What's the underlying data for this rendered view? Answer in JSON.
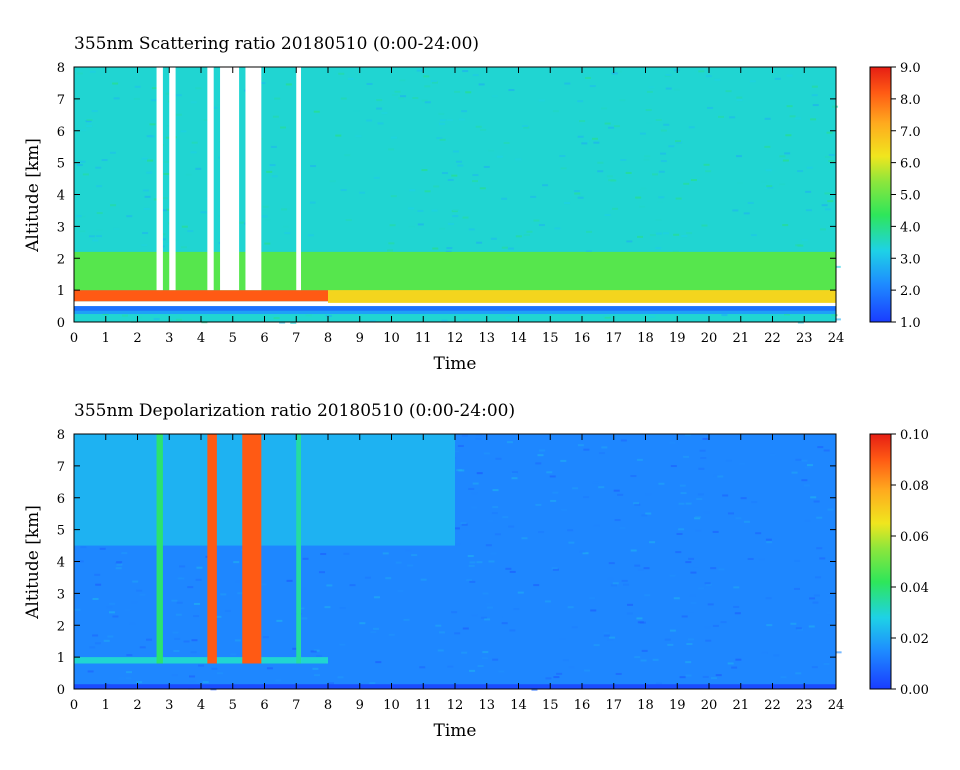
{
  "chart_data": [
    {
      "type": "heatmap",
      "title": "355nm Scattering ratio  20180510 (0:00-24:00)",
      "xlabel": "Time",
      "ylabel": "Altitude [km]",
      "xlim": [
        0,
        24
      ],
      "ylim": [
        0,
        8
      ],
      "x_ticks": [
        "0",
        "1",
        "2",
        "3",
        "4",
        "5",
        "6",
        "7",
        "8",
        "9",
        "10",
        "11",
        "12",
        "13",
        "14",
        "15",
        "16",
        "17",
        "18",
        "19",
        "20",
        "21",
        "22",
        "23",
        "24"
      ],
      "y_ticks": [
        "0",
        "1",
        "2",
        "3",
        "4",
        "5",
        "6",
        "7",
        "8"
      ],
      "colorbar": {
        "min": 1.0,
        "max": 9.0,
        "ticks": [
          "1.0",
          "2.0",
          "3.0",
          "4.0",
          "5.0",
          "6.0",
          "7.0",
          "8.0",
          "9.0"
        ]
      },
      "background_value": 3.4,
      "features": [
        {
          "kind": "layer",
          "x": [
            0,
            24
          ],
          "y": [
            0.25,
            0.35
          ],
          "value": 2.5
        },
        {
          "kind": "layer",
          "x": [
            0,
            24
          ],
          "y": [
            0.35,
            0.5
          ],
          "value": 1.8
        },
        {
          "kind": "layer",
          "x": [
            0,
            24
          ],
          "y": [
            0.5,
            0.65
          ],
          "value": "saturated"
        },
        {
          "kind": "layer",
          "x": [
            0,
            8
          ],
          "y": [
            0.65,
            1.0
          ],
          "value": 8.2
        },
        {
          "kind": "layer",
          "x": [
            8,
            24
          ],
          "y": [
            0.6,
            1.9
          ],
          "value": 6.5
        },
        {
          "kind": "layer",
          "x": [
            0,
            24
          ],
          "y": [
            1.0,
            2.2
          ],
          "value": 4.8
        },
        {
          "kind": "gap",
          "x": [
            2.6,
            2.8
          ],
          "y": [
            1.0,
            8
          ]
        },
        {
          "kind": "gap",
          "x": [
            3.0,
            3.2
          ],
          "y": [
            1.0,
            8
          ]
        },
        {
          "kind": "gap",
          "x": [
            4.2,
            4.4
          ],
          "y": [
            1.0,
            8
          ]
        },
        {
          "kind": "gap",
          "x": [
            4.6,
            5.2
          ],
          "y": [
            1.0,
            8
          ]
        },
        {
          "kind": "gap",
          "x": [
            5.4,
            5.9
          ],
          "y": [
            1.0,
            8
          ]
        },
        {
          "kind": "gap",
          "x": [
            7.0,
            7.15
          ],
          "y": [
            1.0,
            8
          ]
        }
      ]
    },
    {
      "type": "heatmap",
      "title": "355nm Depolarization ratio  20180510 (0:00-24:00)",
      "xlabel": "Time",
      "ylabel": "Altitude [km]",
      "xlim": [
        0,
        24
      ],
      "ylim": [
        0,
        8
      ],
      "x_ticks": [
        "0",
        "1",
        "2",
        "3",
        "4",
        "5",
        "6",
        "7",
        "8",
        "9",
        "10",
        "11",
        "12",
        "13",
        "14",
        "15",
        "16",
        "17",
        "18",
        "19",
        "20",
        "21",
        "22",
        "23",
        "24"
      ],
      "y_ticks": [
        "0",
        "1",
        "2",
        "3",
        "4",
        "5",
        "6",
        "7",
        "8"
      ],
      "colorbar": {
        "min": 0.0,
        "max": 0.1,
        "ticks": [
          "0.00",
          "0.02",
          "0.04",
          "0.06",
          "0.08",
          "0.10"
        ]
      },
      "background_value": 0.014,
      "features": [
        {
          "kind": "layer",
          "x": [
            0,
            24
          ],
          "y": [
            0.0,
            0.15
          ],
          "value": 0.003
        },
        {
          "kind": "layer",
          "x": [
            0,
            8
          ],
          "y": [
            0.8,
            1.0
          ],
          "value": 0.03
        },
        {
          "kind": "layer",
          "x": [
            0,
            12
          ],
          "y": [
            4.5,
            8
          ],
          "value": 0.022
        },
        {
          "kind": "column",
          "x": [
            2.6,
            2.8
          ],
          "y": [
            0.8,
            8
          ],
          "value": 0.04
        },
        {
          "kind": "column",
          "x": [
            4.2,
            4.5
          ],
          "y": [
            0.8,
            8
          ],
          "value": 0.09
        },
        {
          "kind": "column",
          "x": [
            5.3,
            5.9
          ],
          "y": [
            0.8,
            8
          ],
          "value": 0.09
        },
        {
          "kind": "column",
          "x": [
            7.0,
            7.15
          ],
          "y": [
            0.8,
            8
          ],
          "value": 0.035
        }
      ]
    }
  ]
}
